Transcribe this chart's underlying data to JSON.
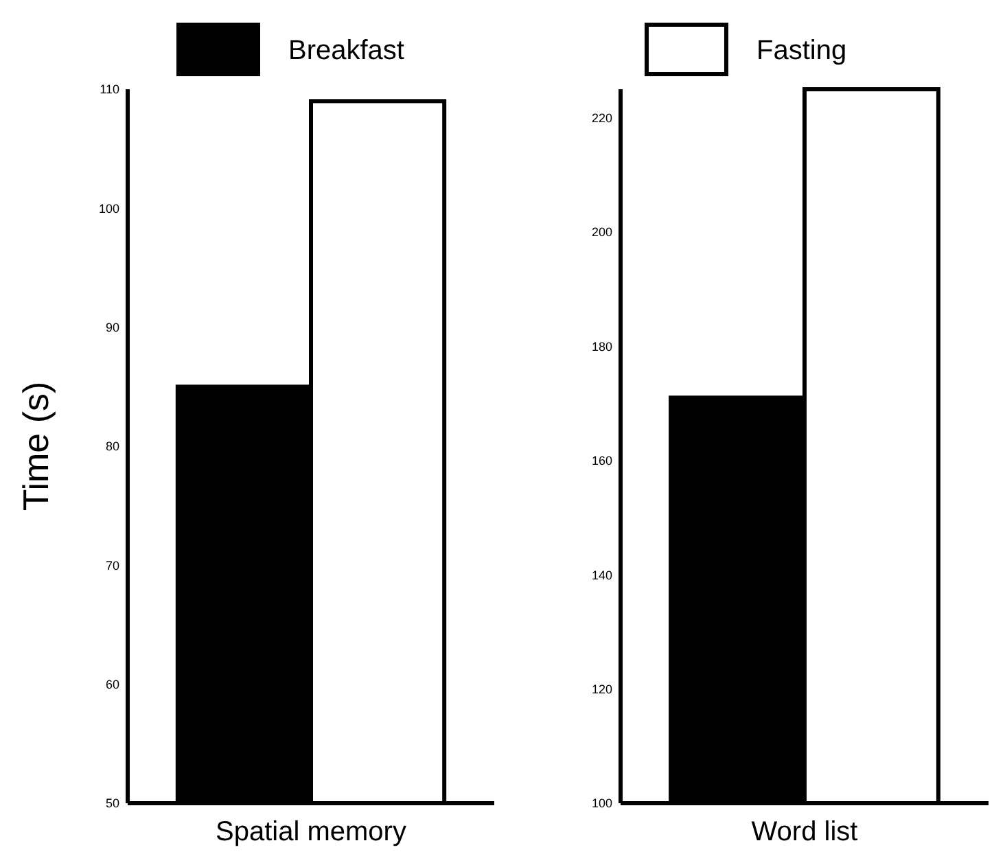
{
  "chart_data": [
    {
      "type": "bar",
      "ylabel": "Time (s)",
      "categories": [
        "Spatial memory"
      ],
      "ylim": [
        50,
        110
      ],
      "yticks": [
        50,
        60,
        70,
        80,
        90,
        100,
        110
      ],
      "legend": "top",
      "series": [
        {
          "name": "Breakfast",
          "color": "#000000",
          "values": [
            85
          ]
        },
        {
          "name": "Fasting",
          "color": "#ffffff",
          "values": [
            109
          ]
        }
      ]
    },
    {
      "type": "bar",
      "categories": [
        "Word list"
      ],
      "ylim": [
        100,
        225
      ],
      "yticks": [
        100,
        120,
        140,
        160,
        180,
        200,
        220
      ],
      "series": [
        {
          "color": "#000000",
          "values": [
            171
          ]
        },
        {
          "color": "#ffffff",
          "values": [
            225
          ]
        }
      ]
    }
  ]
}
